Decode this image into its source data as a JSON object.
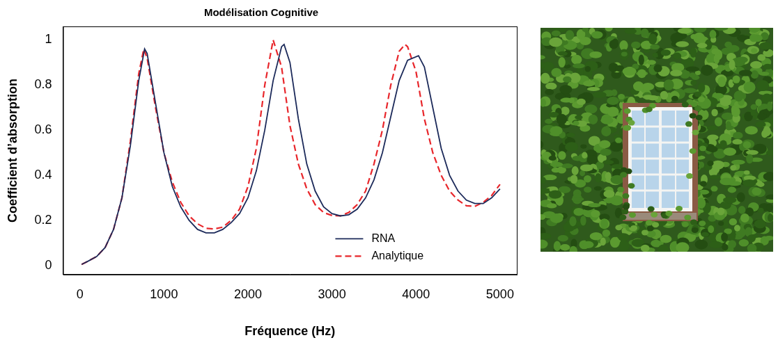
{
  "chart_data": {
    "type": "line",
    "title": "Modélisation Cognitive",
    "x_label": "Fréquence (Hz)",
    "y_label": "Coefficient d’absorption",
    "xlim": [
      -200,
      5200
    ],
    "xticks": [
      0,
      1000,
      2000,
      3000,
      4000,
      5000
    ],
    "ylim": [
      -0.04,
      1.06
    ],
    "yticks": [
      0,
      0.2,
      0.4,
      0.6,
      0.8,
      1
    ],
    "grid": false,
    "legend": "bottom",
    "series": [
      {
        "name": "RNA",
        "color": "#1c2a5a",
        "line_style": "solid",
        "x": [
          20,
          100,
          200,
          300,
          400,
          500,
          600,
          700,
          770,
          800,
          900,
          1000,
          1100,
          1200,
          1300,
          1400,
          1500,
          1600,
          1700,
          1800,
          1900,
          2000,
          2100,
          2200,
          2300,
          2400,
          2430,
          2500,
          2600,
          2700,
          2800,
          2900,
          3000,
          3100,
          3200,
          3300,
          3400,
          3500,
          3600,
          3700,
          3800,
          3900,
          4030,
          4100,
          4200,
          4300,
          4400,
          4500,
          4600,
          4700,
          4800,
          4900,
          5000
        ],
        "values": [
          0.005,
          0.02,
          0.04,
          0.08,
          0.16,
          0.3,
          0.53,
          0.82,
          0.96,
          0.94,
          0.72,
          0.5,
          0.35,
          0.26,
          0.2,
          0.16,
          0.145,
          0.145,
          0.16,
          0.19,
          0.23,
          0.3,
          0.42,
          0.6,
          0.82,
          0.97,
          0.98,
          0.9,
          0.65,
          0.45,
          0.33,
          0.26,
          0.23,
          0.22,
          0.225,
          0.25,
          0.3,
          0.38,
          0.5,
          0.66,
          0.82,
          0.91,
          0.93,
          0.88,
          0.7,
          0.52,
          0.4,
          0.33,
          0.29,
          0.275,
          0.275,
          0.3,
          0.34
        ]
      },
      {
        "name": "Analytique",
        "color": "#e8262b",
        "line_style": "dashed",
        "x": [
          20,
          100,
          200,
          300,
          400,
          500,
          600,
          700,
          760,
          800,
          900,
          1000,
          1100,
          1200,
          1300,
          1400,
          1500,
          1600,
          1700,
          1800,
          1900,
          2000,
          2100,
          2200,
          2300,
          2400,
          2500,
          2600,
          2700,
          2800,
          2900,
          3000,
          3100,
          3200,
          3300,
          3400,
          3500,
          3600,
          3700,
          3800,
          3870,
          3900,
          4000,
          4100,
          4200,
          4300,
          4400,
          4500,
          4600,
          4700,
          4800,
          4900,
          5000
        ],
        "values": [
          0.005,
          0.02,
          0.04,
          0.08,
          0.16,
          0.3,
          0.55,
          0.85,
          0.96,
          0.92,
          0.7,
          0.5,
          0.37,
          0.28,
          0.22,
          0.185,
          0.165,
          0.162,
          0.17,
          0.2,
          0.25,
          0.35,
          0.52,
          0.8,
          1.0,
          0.88,
          0.62,
          0.45,
          0.34,
          0.27,
          0.235,
          0.222,
          0.22,
          0.235,
          0.27,
          0.33,
          0.45,
          0.6,
          0.8,
          0.95,
          0.98,
          0.97,
          0.86,
          0.65,
          0.5,
          0.4,
          0.33,
          0.29,
          0.265,
          0.262,
          0.28,
          0.31,
          0.36
        ]
      }
    ]
  }
}
